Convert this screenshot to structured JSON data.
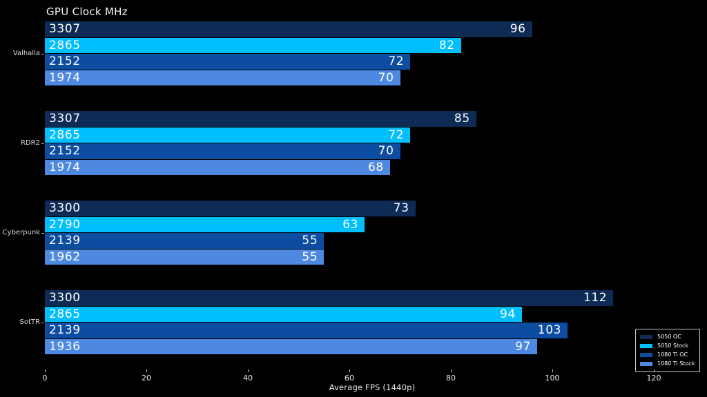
{
  "chart_data": {
    "type": "bar",
    "orientation": "horizontal",
    "title": "GPU Clock MHz",
    "xlabel": "Average FPS (1440p)",
    "x_ticks": [
      0,
      20,
      40,
      60,
      80,
      100,
      120
    ],
    "xlim": [
      0,
      129
    ],
    "grid": false,
    "background_color": "#000000",
    "text_color": "#f0f0f0",
    "legend_position": "lower right",
    "series": [
      {
        "name": "5050 OC",
        "color": "#0d2b55"
      },
      {
        "name": "5050 Stock",
        "color": "#00bfff"
      },
      {
        "name": "1080 Ti OC",
        "color": "#0d4da1"
      },
      {
        "name": "1080 Ti Stock",
        "color": "#4d89e0"
      }
    ],
    "groups": [
      {
        "label": "Valhalla",
        "bars": [
          {
            "series": "5050 OC",
            "clock": "3307",
            "fps": 96
          },
          {
            "series": "5050 Stock",
            "clock": "2865",
            "fps": 82
          },
          {
            "series": "1080 Ti OC",
            "clock": "2152",
            "fps": 72
          },
          {
            "series": "1080 Ti Stock",
            "clock": "1974",
            "fps": 70
          }
        ]
      },
      {
        "label": "RDR2",
        "bars": [
          {
            "series": "5050 OC",
            "clock": "3307",
            "fps": 85
          },
          {
            "series": "5050 Stock",
            "clock": "2865",
            "fps": 72
          },
          {
            "series": "1080 Ti OC",
            "clock": "2152",
            "fps": 70
          },
          {
            "series": "1080 Ti Stock",
            "clock": "1974",
            "fps": 68
          }
        ]
      },
      {
        "label": "Cyberpunk",
        "bars": [
          {
            "series": "5050 OC",
            "clock": "3300",
            "fps": 73
          },
          {
            "series": "5050 Stock",
            "clock": "2790",
            "fps": 63
          },
          {
            "series": "1080 Ti OC",
            "clock": "2139",
            "fps": 55
          },
          {
            "series": "1080 Ti Stock",
            "clock": "1962",
            "fps": 55
          }
        ]
      },
      {
        "label": "SotTR",
        "bars": [
          {
            "series": "5050 OC",
            "clock": "3300",
            "fps": 112
          },
          {
            "series": "5050 Stock",
            "clock": "2865",
            "fps": 94
          },
          {
            "series": "1080 Ti OC",
            "clock": "2139",
            "fps": 103
          },
          {
            "series": "1080 Ti Stock",
            "clock": "1936",
            "fps": 97
          }
        ]
      }
    ]
  }
}
